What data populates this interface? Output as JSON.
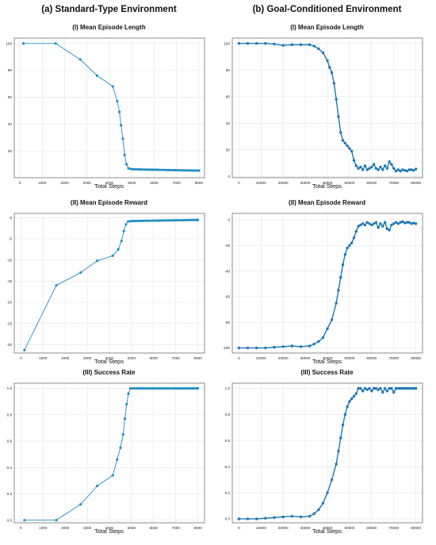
{
  "columns": [
    "(a) Standard-Type Environment",
    "(b) Goal-Conditioned  Environment"
  ],
  "chart_data": [
    {
      "type": "line",
      "id": "a1",
      "title": "(I) Mean Episode Length",
      "xlabel": "Total Steps",
      "ylabel": "",
      "xlim": [
        -250,
        8250
      ],
      "ylim": [
        0,
        104
      ],
      "xticks": [
        0,
        1000,
        2000,
        3000,
        4000,
        5000,
        6000,
        7000,
        8000
      ],
      "yticks": [
        20,
        40,
        60,
        80,
        100
      ],
      "color": "#1f8ec4",
      "marker_size": 1.6,
      "line_width": 0.9,
      "series": [
        {
          "x": [
            160,
            1600,
            2700,
            3450,
            4150,
            4350,
            4450,
            4520,
            4600,
            4680,
            4760,
            4850,
            4950,
            5050,
            5150,
            5250,
            5350,
            5450,
            5550,
            5650,
            5750,
            5850,
            5950,
            6050,
            6150,
            6250,
            6350,
            6450,
            6550,
            6650,
            6750,
            6850,
            6950,
            7050,
            7150,
            7250,
            7350,
            7450,
            7550,
            7650,
            7750,
            7850,
            7950,
            8000
          ],
          "y": [
            100,
            100,
            88,
            76,
            68,
            57,
            49,
            39,
            29,
            17,
            10,
            7,
            6.5,
            6.3,
            6.3,
            6.2,
            6.2,
            6.1,
            6.1,
            6.0,
            6.0,
            6.0,
            5.9,
            5.9,
            5.9,
            5.8,
            5.8,
            5.8,
            5.7,
            5.7,
            5.7,
            5.6,
            5.6,
            5.6,
            5.5,
            5.5,
            5.5,
            5.4,
            5.4,
            5.4,
            5.3,
            5.3,
            5.3,
            5.3
          ]
        }
      ]
    },
    {
      "type": "line",
      "id": "b1",
      "title": "(I) Mean Episode Length",
      "xlabel": "Total Steps",
      "ylabel": "",
      "xlim": [
        -3000,
        83000
      ],
      "ylim": [
        -1,
        104
      ],
      "xticks": [
        0,
        10000,
        20000,
        30000,
        40000,
        50000,
        60000,
        70000,
        80000
      ],
      "yticks": [
        0,
        20,
        40,
        60,
        80,
        100
      ],
      "color": "#1f77b4",
      "marker_size": 1.7,
      "line_width": 1.4,
      "series": [
        {
          "x": [
            0,
            4000,
            8000,
            12000,
            16000,
            20000,
            24000,
            28000,
            32000,
            34000,
            36000,
            38000,
            40000,
            41000,
            42000,
            43000,
            44000,
            45000,
            46000,
            47000,
            48000,
            49000,
            50000,
            51000,
            52000,
            53000,
            54000,
            55000,
            56000,
            57000,
            58000,
            59000,
            60000,
            61000,
            62000,
            63000,
            64000,
            65000,
            66000,
            67000,
            68000,
            69000,
            70000,
            71000,
            72000,
            73000,
            74000,
            75000,
            76000,
            77000,
            78000,
            79000,
            80000
          ],
          "y": [
            100,
            100,
            100,
            100,
            99.5,
            98.5,
            99,
            99,
            99,
            98,
            96,
            93,
            87,
            82,
            78,
            70,
            58,
            45,
            33,
            27,
            25,
            23,
            21,
            19,
            12,
            8,
            6,
            7,
            5,
            8,
            5,
            6,
            7,
            9,
            6,
            5,
            7,
            5,
            8,
            6,
            11,
            9,
            6,
            4,
            5,
            4,
            5,
            4.5,
            4,
            5,
            5,
            4.5,
            5.5
          ]
        }
      ]
    },
    {
      "type": "line",
      "id": "a2",
      "title": "(II) Mean Episode Reward",
      "xlabel": "Total Steps",
      "ylabel": "",
      "xlim": [
        -300,
        8300
      ],
      "ylim": [
        -32,
        1
      ],
      "xticks": [
        0,
        1000,
        2000,
        3000,
        4000,
        5000,
        6000,
        7000,
        8000
      ],
      "yticks": [
        0,
        -5,
        -10,
        -15,
        -20,
        -25,
        -30
      ],
      "color": "#1f8ec4",
      "marker_size": 1.6,
      "line_width": 0.9,
      "series": [
        {
          "x": [
            160,
            1600,
            2700,
            3450,
            4150,
            4400,
            4550,
            4650,
            4750,
            4850,
            4950,
            5050,
            5150,
            5250,
            5350,
            5450,
            5550,
            5650,
            5750,
            5850,
            5950,
            6050,
            6150,
            6250,
            6350,
            6450,
            6550,
            6650,
            6750,
            6850,
            6950,
            7050,
            7150,
            7250,
            7350,
            7450,
            7550,
            7650,
            7750,
            7850,
            7950,
            8000
          ],
          "y": [
            -31.3,
            -16,
            -13,
            -10.2,
            -9,
            -7.5,
            -5.5,
            -3.2,
            -1.6,
            -0.9,
            -0.85,
            -0.8,
            -0.8,
            -0.78,
            -0.78,
            -0.76,
            -0.75,
            -0.74,
            -0.74,
            -0.72,
            -0.72,
            -0.7,
            -0.7,
            -0.69,
            -0.68,
            -0.67,
            -0.67,
            -0.66,
            -0.65,
            -0.64,
            -0.63,
            -0.62,
            -0.62,
            -0.61,
            -0.6,
            -0.59,
            -0.58,
            -0.57,
            -0.56,
            -0.55,
            -0.55,
            -0.55
          ]
        }
      ]
    },
    {
      "type": "line",
      "id": "b2",
      "title": "(II) Mean Episode Reward",
      "xlabel": "Total Steps",
      "ylabel": "",
      "xlim": [
        -3000,
        83000
      ],
      "ylim": [
        -104,
        5
      ],
      "xticks": [
        0,
        10000,
        20000,
        30000,
        40000,
        50000,
        60000,
        70000,
        80000
      ],
      "yticks": [
        0,
        -20,
        -40,
        -60,
        -80,
        -100
      ],
      "color": "#1f77b4",
      "marker_size": 1.7,
      "line_width": 1.4,
      "series": [
        {
          "x": [
            0,
            4000,
            8000,
            12000,
            16000,
            20000,
            24000,
            28000,
            32000,
            34000,
            36000,
            38000,
            40000,
            42000,
            44000,
            45000,
            46000,
            47000,
            48000,
            49000,
            50000,
            51000,
            52000,
            53000,
            54000,
            55000,
            56000,
            57000,
            58000,
            59000,
            60000,
            61000,
            62000,
            63000,
            64000,
            65000,
            66000,
            67000,
            68000,
            69000,
            70000,
            71000,
            72000,
            73000,
            74000,
            75000,
            76000,
            77000,
            78000,
            79000,
            80000
          ],
          "y": [
            -100,
            -100,
            -100,
            -100,
            -99.5,
            -99,
            -98.5,
            -99,
            -98.5,
            -97,
            -95,
            -92,
            -85,
            -78,
            -65,
            -55,
            -45,
            -35,
            -27,
            -22,
            -20,
            -18,
            -14,
            -9,
            -5,
            -4,
            -3,
            -4,
            -2,
            -3,
            -4,
            -3,
            -2,
            -6,
            -3,
            -5,
            -2,
            -7,
            -8,
            -4,
            -3,
            -2,
            -3,
            -2,
            -1.5,
            -2.5,
            -2,
            -2,
            -3,
            -2.5,
            -3
          ]
        }
      ]
    },
    {
      "type": "line",
      "id": "a3",
      "title": "(III) Success Rate",
      "xlabel": "Total Steps",
      "ylabel": "",
      "xlim": [
        -300,
        8300
      ],
      "ylim": [
        -0.02,
        1.04
      ],
      "xticks": [
        0,
        1000,
        2000,
        3000,
        4000,
        5000,
        6000,
        7000,
        8000
      ],
      "yticks": [
        0.0,
        0.2,
        0.4,
        0.6,
        0.8,
        1.0
      ],
      "color": "#1f8ec4",
      "marker_size": 1.6,
      "line_width": 0.9,
      "series": [
        {
          "x": [
            160,
            1600,
            2700,
            3450,
            4150,
            4350,
            4500,
            4620,
            4700,
            4780,
            4860,
            4950,
            5050,
            5150,
            5250,
            5350,
            5450,
            5550,
            5650,
            5750,
            5850,
            5950,
            6050,
            6150,
            6250,
            6350,
            6450,
            6550,
            6650,
            6750,
            6850,
            6950,
            7050,
            7150,
            7250,
            7350,
            7450,
            7550,
            7650,
            7750,
            7850,
            7950,
            8000
          ],
          "y": [
            0,
            0,
            0.12,
            0.26,
            0.34,
            0.46,
            0.55,
            0.65,
            0.77,
            0.88,
            0.96,
            1.0,
            1.0,
            1.0,
            1.0,
            1.0,
            1.0,
            1.0,
            1.0,
            1.0,
            1.0,
            1.0,
            1.0,
            1.0,
            1.0,
            1.0,
            1.0,
            1.0,
            1.0,
            1.0,
            1.0,
            1.0,
            1.0,
            1.0,
            1.0,
            1.0,
            1.0,
            1.0,
            1.0,
            1.0,
            1.0,
            1.0,
            1.0
          ]
        }
      ]
    },
    {
      "type": "line",
      "id": "b3",
      "title": "(III) Success Rate",
      "xlabel": "Total Steps",
      "ylabel": "",
      "xlim": [
        -3000,
        83000
      ],
      "ylim": [
        -0.03,
        1.04
      ],
      "xticks": [
        0,
        10000,
        20000,
        30000,
        40000,
        50000,
        60000,
        70000,
        80000
      ],
      "yticks": [
        0.0,
        0.2,
        0.4,
        0.6,
        0.8,
        1.0
      ],
      "color": "#1f77b4",
      "marker_size": 1.7,
      "line_width": 1.4,
      "series": [
        {
          "x": [
            0,
            4000,
            8000,
            12000,
            16000,
            20000,
            24000,
            28000,
            32000,
            34000,
            36000,
            38000,
            40000,
            42000,
            44000,
            45000,
            46000,
            47000,
            48000,
            49000,
            50000,
            51000,
            52000,
            53000,
            54000,
            55000,
            56000,
            57000,
            58000,
            59000,
            60000,
            61000,
            62000,
            63000,
            64000,
            65000,
            66000,
            67000,
            68000,
            69000,
            70000,
            71000,
            72000,
            73000,
            74000,
            75000,
            76000,
            77000,
            78000,
            79000,
            80000
          ],
          "y": [
            0,
            0,
            0,
            0.005,
            0.01,
            0.015,
            0.02,
            0.015,
            0.02,
            0.04,
            0.07,
            0.12,
            0.2,
            0.3,
            0.42,
            0.52,
            0.62,
            0.72,
            0.8,
            0.86,
            0.9,
            0.92,
            0.94,
            0.96,
            1.0,
            1.0,
            0.98,
            1.0,
            0.99,
            1.0,
            0.98,
            1.0,
            1.0,
            0.99,
            1.0,
            0.97,
            1.0,
            0.98,
            1.0,
            1.0,
            0.97,
            1.0,
            1.0,
            1.0,
            1.0,
            1.0,
            1.0,
            1.0,
            1.0,
            1.0,
            1.0
          ]
        }
      ]
    }
  ]
}
